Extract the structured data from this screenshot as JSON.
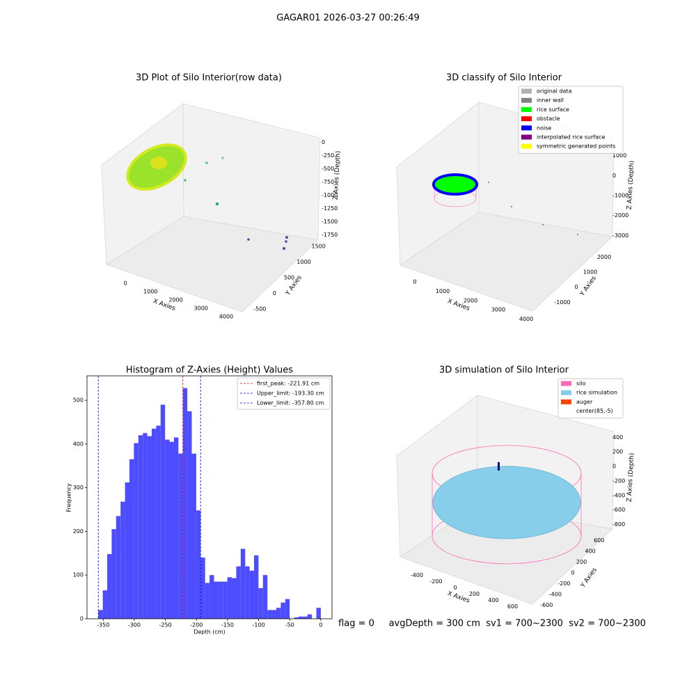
{
  "title": "GAGAR01 2026-03-27 00:26:49",
  "footer": "flag = 0     avgDepth = 300 cm  sv1 = 700~2300  sv2 = 700~2300",
  "chart_data": [
    {
      "type": "scatter3d",
      "title": "3D Plot of Silo Interior(row data)",
      "xlabel": "X Axies",
      "ylabel": "Y Axies",
      "zlabel": "Z Axies (Depth)",
      "xlim": [
        -750,
        4500
      ],
      "xticks": [
        0,
        1000,
        2000,
        3000,
        4000
      ],
      "ylim": [
        -650,
        1650
      ],
      "yticks": [
        -500,
        0,
        500,
        1000,
        1500
      ],
      "zlim": [
        -1850,
        100
      ],
      "zticks": [
        0,
        -250,
        -500,
        -750,
        -1000,
        -1250,
        -1500,
        -1750
      ]
    },
    {
      "type": "scatter3d",
      "title": "3D classify of Silo Interior",
      "xlabel": "X Axies",
      "ylabel": "Y Axies",
      "zlabel": "Z Axies (Depth)",
      "xlim": [
        -750,
        4400
      ],
      "xticks": [
        0,
        1000,
        2000,
        3000,
        4000
      ],
      "ylim": [
        -1400,
        2300
      ],
      "yticks": [
        -1000,
        0,
        1000,
        2000
      ],
      "zlim": [
        -3200,
        1300
      ],
      "zticks": [
        1000,
        0,
        -1000,
        -2000,
        -3000
      ],
      "legend": [
        {
          "name": "original data",
          "color": "#b0b0b0"
        },
        {
          "name": "inner wall",
          "color": "#808080"
        },
        {
          "name": "rice surface",
          "color": "#00ff00"
        },
        {
          "name": "obstacle",
          "color": "#ff0000"
        },
        {
          "name": "noise",
          "color": "#0000ff"
        },
        {
          "name": "interpolated rice surface",
          "color": "#800080"
        },
        {
          "name": "symmetric generated points",
          "color": "#ffff00"
        }
      ]
    },
    {
      "type": "histogram",
      "title": "Histogram of Z-Axies (Height) Values",
      "xlabel": "Depth (cm)",
      "ylabel": "Frequency",
      "color": "#4d4dff",
      "bins": [
        -357.8,
        -350.64,
        -343.49,
        -336.33,
        -329.18,
        -322.02,
        -314.86,
        -307.71,
        -300.55,
        -293.4,
        -286.24,
        -279.08,
        -271.93,
        -264.77,
        -257.62,
        -250.46,
        -243.3,
        -236.15,
        -228.99,
        -221.84,
        -214.68,
        -207.52,
        -200.37,
        -193.21,
        -186.06,
        -178.9,
        -171.74,
        -164.59,
        -157.43,
        -150.28,
        -143.12,
        -135.96,
        -128.81,
        -121.65,
        -114.5,
        -107.34,
        -100.18,
        -93.03,
        -85.87,
        -78.72,
        -71.56,
        -64.4,
        -57.25,
        -50.09,
        -42.94,
        -35.78,
        -28.62,
        -21.47,
        -14.31,
        -7.16,
        0
      ],
      "counts": [
        20,
        65,
        148,
        205,
        235,
        268,
        312,
        365,
        402,
        420,
        425,
        418,
        435,
        442,
        490,
        410,
        405,
        415,
        378,
        528,
        475,
        378,
        248,
        140,
        82,
        100,
        85,
        85,
        85,
        95,
        93,
        120,
        160,
        120,
        110,
        145,
        70,
        100,
        20,
        20,
        25,
        37,
        45,
        0,
        3,
        5,
        5,
        10,
        0,
        25
      ],
      "xlim": [
        -376,
        18
      ],
      "xticks": [
        -350,
        -300,
        -250,
        -200,
        -150,
        -100,
        -50,
        0
      ],
      "ylim": [
        0,
        556
      ],
      "yticks": [
        0,
        100,
        200,
        300,
        400,
        500
      ],
      "vlines": [
        {
          "name": "first_peak: -221.91 cm",
          "value": -221.91,
          "color": "#ff0000"
        },
        {
          "name": "Upper_limit: -193.30 cm",
          "value": -193.3,
          "color": "#0000ff"
        },
        {
          "name": "Lower_limit: -357.80 cm",
          "value": -357.8,
          "color": "#0000ff"
        }
      ]
    },
    {
      "type": "scatter3d",
      "title": "3D simulation of Silo Interior",
      "xlabel": "X Axies",
      "ylabel": "Y Axies",
      "zlabel": "Z Axies (Depth)",
      "xlim": [
        -560,
        720
      ],
      "xticks": [
        -400,
        -200,
        0,
        200,
        400,
        600
      ],
      "ylim": [
        -700,
        700
      ],
      "yticks": [
        -600,
        -400,
        -200,
        0,
        200,
        400,
        600
      ],
      "zlim": [
        -900,
        480
      ],
      "zticks": [
        400,
        200,
        0,
        -200,
        -400,
        -600,
        -800
      ],
      "legend": [
        {
          "name": "silo",
          "color": "#ff69b4"
        },
        {
          "name": "rice simulation",
          "color": "#87ceeb"
        },
        {
          "name": "auger",
          "color": "#ff4500"
        },
        {
          "name": "center(85,-5)",
          "color": "#ffffff"
        }
      ]
    }
  ]
}
